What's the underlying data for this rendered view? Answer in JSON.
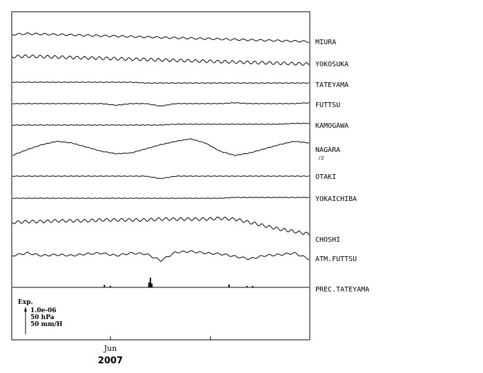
{
  "chart_data": {
    "type": "line",
    "x_axis": {
      "tick_labels": [
        "Jun"
      ],
      "year_label": "2007"
    },
    "series": [
      {
        "name": "MIURA",
        "sub": "",
        "values": [
          0.0,
          0.1,
          0.05,
          0.0,
          -0.05,
          -0.1,
          -0.15,
          -0.2,
          -0.25,
          -0.3,
          -0.35,
          -0.4,
          -0.45,
          -0.5,
          -0.55,
          -0.6,
          -0.65,
          -0.7,
          -0.75,
          -0.8,
          -0.85
        ]
      },
      {
        "name": "YOKOSUKA",
        "sub": "",
        "values": [
          0.0,
          0.05,
          0.0,
          -0.05,
          -0.1,
          -0.15,
          -0.2,
          -0.25,
          -0.3,
          -0.35,
          -0.4,
          -0.45,
          -0.5,
          -0.55,
          -0.6,
          -0.65,
          -0.7,
          -0.75,
          -0.8,
          -0.85,
          -0.9
        ]
      },
      {
        "name": "TATEYAMA",
        "sub": "",
        "values": [
          0.0,
          0.0,
          0.0,
          0.0,
          0.0,
          0.0,
          0.0,
          0.0,
          0.0,
          -0.1,
          -0.1,
          -0.1,
          -0.1,
          -0.1,
          -0.1,
          -0.1,
          -0.1,
          -0.1,
          -0.1,
          -0.1,
          -0.1
        ]
      },
      {
        "name": "FUTTSU",
        "sub": "",
        "values": [
          0.0,
          0.0,
          0.0,
          0.0,
          0.0,
          0.0,
          0.0,
          -0.2,
          0.0,
          0.0,
          -0.3,
          0.0,
          0.0,
          0.0,
          0.0,
          0.1,
          0.0,
          0.0,
          0.0,
          0.0,
          0.1
        ]
      },
      {
        "name": "KAMOGAWA",
        "sub": "",
        "values": [
          0.0,
          0.0,
          0.0,
          0.0,
          0.0,
          0.0,
          0.0,
          0.0,
          0.0,
          0.0,
          0.0,
          0.1,
          0.1,
          0.1,
          0.1,
          0.1,
          0.1,
          0.1,
          0.1,
          0.2,
          0.2
        ]
      },
      {
        "name": "NAGARA",
        "sub": "/2",
        "values": [
          -0.5,
          0.2,
          0.8,
          1.2,
          1.0,
          0.5,
          0.0,
          -0.3,
          -0.2,
          0.3,
          0.8,
          1.2,
          1.5,
          1.0,
          0.0,
          -0.5,
          -0.2,
          0.3,
          0.8,
          1.2,
          1.0
        ]
      },
      {
        "name": "OTAKI",
        "sub": "",
        "values": [
          0.0,
          0.0,
          0.0,
          0.0,
          0.0,
          0.0,
          0.0,
          0.0,
          0.0,
          0.0,
          -0.3,
          0.0,
          0.0,
          0.0,
          0.0,
          0.0,
          0.0,
          0.0,
          0.0,
          0.0,
          0.0
        ]
      },
      {
        "name": "YOKAICHIBA",
        "sub": "",
        "values": [
          0.0,
          0.0,
          0.0,
          0.0,
          0.0,
          0.0,
          0.0,
          0.0,
          0.0,
          0.0,
          0.0,
          0.0,
          0.0,
          0.0,
          0.0,
          0.1,
          0.1,
          0.1,
          0.1,
          0.1,
          0.1
        ]
      },
      {
        "name": "CHOSHI",
        "sub": "",
        "values": [
          0.0,
          0.1,
          0.1,
          0.2,
          0.2,
          0.2,
          0.3,
          0.3,
          0.3,
          0.3,
          0.4,
          0.4,
          0.4,
          0.4,
          0.5,
          0.4,
          0.0,
          -0.4,
          -0.8,
          -1.1,
          -1.4
        ]
      },
      {
        "name": "ATM.FUTTSU",
        "sub": "",
        "values": [
          0.0,
          0.3,
          0.0,
          0.1,
          0.0,
          0.2,
          0.3,
          0.0,
          0.3,
          0.2,
          -0.6,
          0.4,
          0.5,
          0.3,
          0.2,
          -0.1,
          -0.4,
          0.0,
          0.1,
          0.3,
          -0.4
        ]
      },
      {
        "name": "PREC.TATEYAMA",
        "sub": "",
        "values": [
          0,
          0,
          0,
          0,
          0,
          0,
          0,
          0,
          0,
          0,
          0,
          0,
          0,
          0,
          0,
          0,
          0,
          0,
          0,
          0,
          0
        ],
        "spikes": [
          {
            "t": 0.31,
            "v": 0.25
          },
          {
            "t": 0.33,
            "v": 0.15
          },
          {
            "t": 0.46,
            "v": 0.5
          },
          {
            "t": 0.465,
            "v": 1.0
          },
          {
            "t": 0.47,
            "v": 0.4
          },
          {
            "t": 0.73,
            "v": 0.3
          },
          {
            "t": 0.79,
            "v": 0.15
          },
          {
            "t": 0.81,
            "v": 0.15
          }
        ]
      }
    ],
    "scale_legend": {
      "title": "Exp.",
      "items": [
        "1.0e-06",
        "50 hPa",
        "50 mm/H"
      ]
    }
  }
}
